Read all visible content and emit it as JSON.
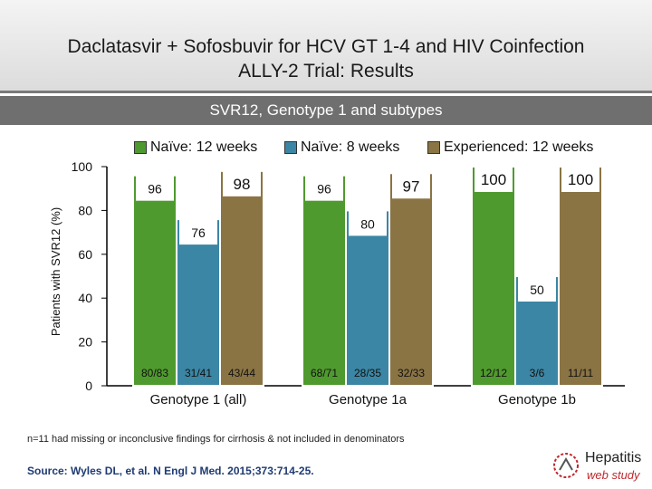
{
  "header": {
    "title_line1": "Daclatasvir + Sofosbuvir for HCV GT 1-4 and HIV Coinfection",
    "title_line2": "ALLY-2 Trial: Results"
  },
  "subtitle": "SVR12, Genotype 1 and subtypes",
  "colors": {
    "naive12": "#4f9a2e",
    "naive8": "#3b86a4",
    "experienced12": "#8a7444"
  },
  "chart_data": {
    "type": "bar",
    "title": "SVR12, Genotype 1 and subtypes",
    "ylabel": "Patients with SVR12 (%)",
    "xlabel": "",
    "ylim": [
      0,
      100
    ],
    "yticks": [
      "0",
      "20",
      "40",
      "60",
      "80",
      "100"
    ],
    "categories": [
      "Genotype 1 (all)",
      "Genotype 1a",
      "Genotype 1b"
    ],
    "series": [
      {
        "name": "Naïve: 12 weeks",
        "values": [
          96,
          96,
          100
        ],
        "labels": [
          "96",
          "96",
          "100"
        ],
        "fractions": [
          "80/83",
          "68/71",
          "12/12"
        ]
      },
      {
        "name": "Naïve: 8 weeks",
        "values": [
          76,
          80,
          50
        ],
        "labels": [
          "76",
          "80",
          "50"
        ],
        "fractions": [
          "31/41",
          "28/35",
          "3/6"
        ]
      },
      {
        "name": "Experienced: 12 weeks",
        "values": [
          98,
          97,
          100
        ],
        "labels": [
          "98",
          "97",
          "100"
        ],
        "fractions": [
          "43/44",
          "32/33",
          "11/11"
        ]
      }
    ]
  },
  "footnote": "n=11 had missing or inconclusive findings for cirrhosis & not included in denominators",
  "source": "Source: Wyles DL, et al. N Engl J Med. 2015;373:714-25.",
  "logo": {
    "line1": "Hepatitis",
    "line2": "web study"
  }
}
